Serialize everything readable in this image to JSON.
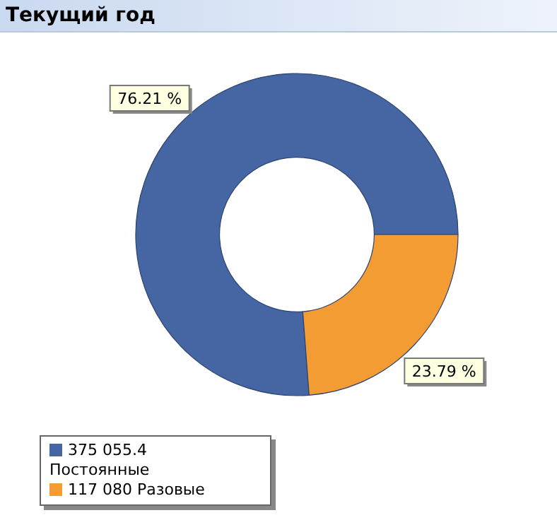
{
  "chart_data": {
    "type": "donut",
    "title": "Текущий год",
    "categories": [
      "375 055.4 Постоянные",
      "117 080 Разовые"
    ],
    "values": [
      76.21,
      23.79
    ],
    "colors": [
      "#4666a3",
      "#f29c33"
    ],
    "value_labels": [
      "76.21 %",
      "23.79 %"
    ],
    "legend": "bottom left"
  }
}
